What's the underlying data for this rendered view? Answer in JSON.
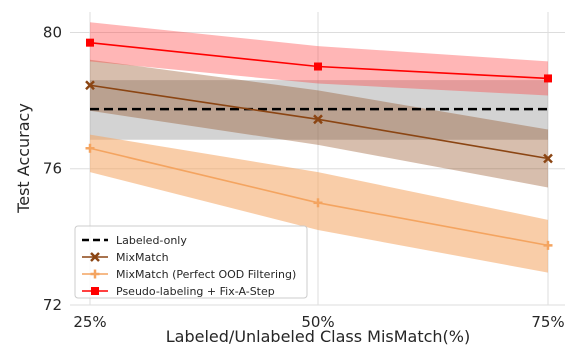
{
  "chart_data": {
    "type": "line",
    "title": "",
    "xlabel": "Labeled/Unlabeled Class MisMatch(%)",
    "ylabel": "Test Accuracy",
    "categories": [
      "25%",
      "50%",
      "75%"
    ],
    "ylim": [
      72,
      80.6
    ],
    "yticks": [
      72,
      76,
      80
    ],
    "grid": true,
    "legend_position": "lower-left",
    "series": [
      {
        "name": "Labeled-only",
        "style": "dashed",
        "color": "#000000",
        "band_color": "#9e9e9e",
        "values": [
          77.75,
          77.75,
          77.75
        ],
        "lower": [
          76.85,
          76.85,
          76.85
        ],
        "upper": [
          78.6,
          78.6,
          78.6
        ]
      },
      {
        "name": "MixMatch",
        "style": "solid",
        "marker": "x",
        "color": "#8B4513",
        "band_color": "#8B4513",
        "values": [
          78.45,
          77.45,
          76.3
        ],
        "lower": [
          77.7,
          76.7,
          75.45
        ],
        "upper": [
          79.2,
          78.3,
          77.15
        ]
      },
      {
        "name": "MixMatch (Perfect OOD Filtering)",
        "style": "solid",
        "marker": "plus",
        "color": "#F4A460",
        "band_color": "#F4A460",
        "values": [
          76.6,
          75.0,
          73.75
        ],
        "lower": [
          75.9,
          74.2,
          72.95
        ],
        "upper": [
          77.0,
          75.9,
          74.5
        ]
      },
      {
        "name": "Pseudo-labeling + Fix-A-Step",
        "style": "solid",
        "marker": "square",
        "color": "#FF0000",
        "band_color": "#FF4040",
        "values": [
          79.7,
          79.0,
          78.65
        ],
        "lower": [
          79.15,
          78.5,
          78.15
        ],
        "upper": [
          80.3,
          79.6,
          79.15
        ]
      }
    ]
  }
}
